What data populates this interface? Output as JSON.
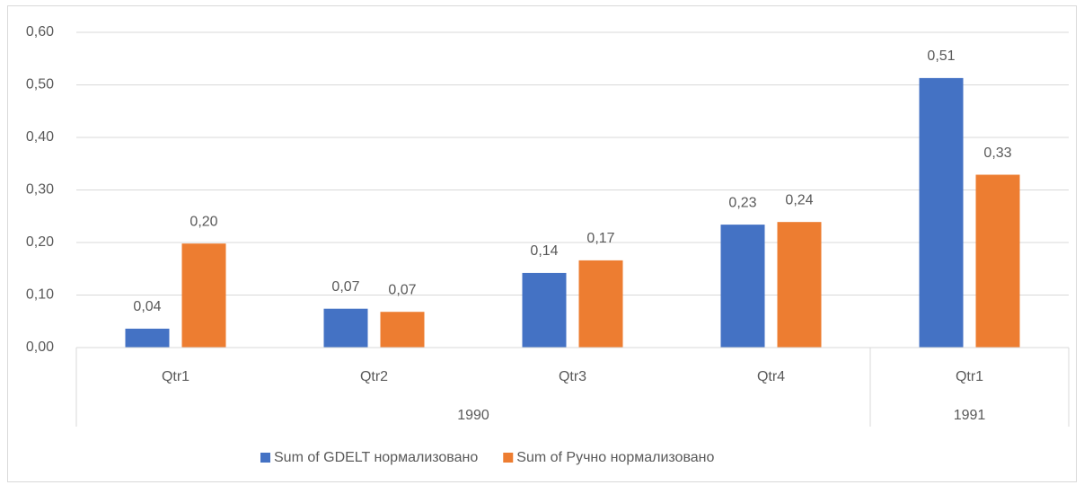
{
  "chart_data": {
    "type": "bar",
    "categories": [
      "Qtr1",
      "Qtr2",
      "Qtr3",
      "Qtr4",
      "Qtr1"
    ],
    "category_groups": [
      {
        "label": "1990",
        "span": 4
      },
      {
        "label": "1991",
        "span": 1
      }
    ],
    "series": [
      {
        "name": "Sum of GDELT нормализовано",
        "color": "#4472c4",
        "values": [
          0.036,
          0.074,
          0.142,
          0.234,
          0.513
        ],
        "value_labels": [
          "0,04",
          "0,07",
          "0,14",
          "0,23",
          "0,51"
        ]
      },
      {
        "name": "Sum of Ручно нормализовано",
        "color": "#ed7d31",
        "values": [
          0.198,
          0.068,
          0.166,
          0.239,
          0.329
        ],
        "value_labels": [
          "0,20",
          "0,07",
          "0,17",
          "0,24",
          "0,33"
        ]
      }
    ],
    "ylim": [
      0,
      0.6
    ],
    "yticks": [
      {
        "value": 0,
        "label": "0,00"
      },
      {
        "value": 0.1,
        "label": "0,10"
      },
      {
        "value": 0.2,
        "label": "0,20"
      },
      {
        "value": 0.3,
        "label": "0,30"
      },
      {
        "value": 0.4,
        "label": "0,40"
      },
      {
        "value": 0.5,
        "label": "0,50"
      },
      {
        "value": 0.6,
        "label": "0,60"
      }
    ],
    "grid": true,
    "legend": "bottom"
  }
}
